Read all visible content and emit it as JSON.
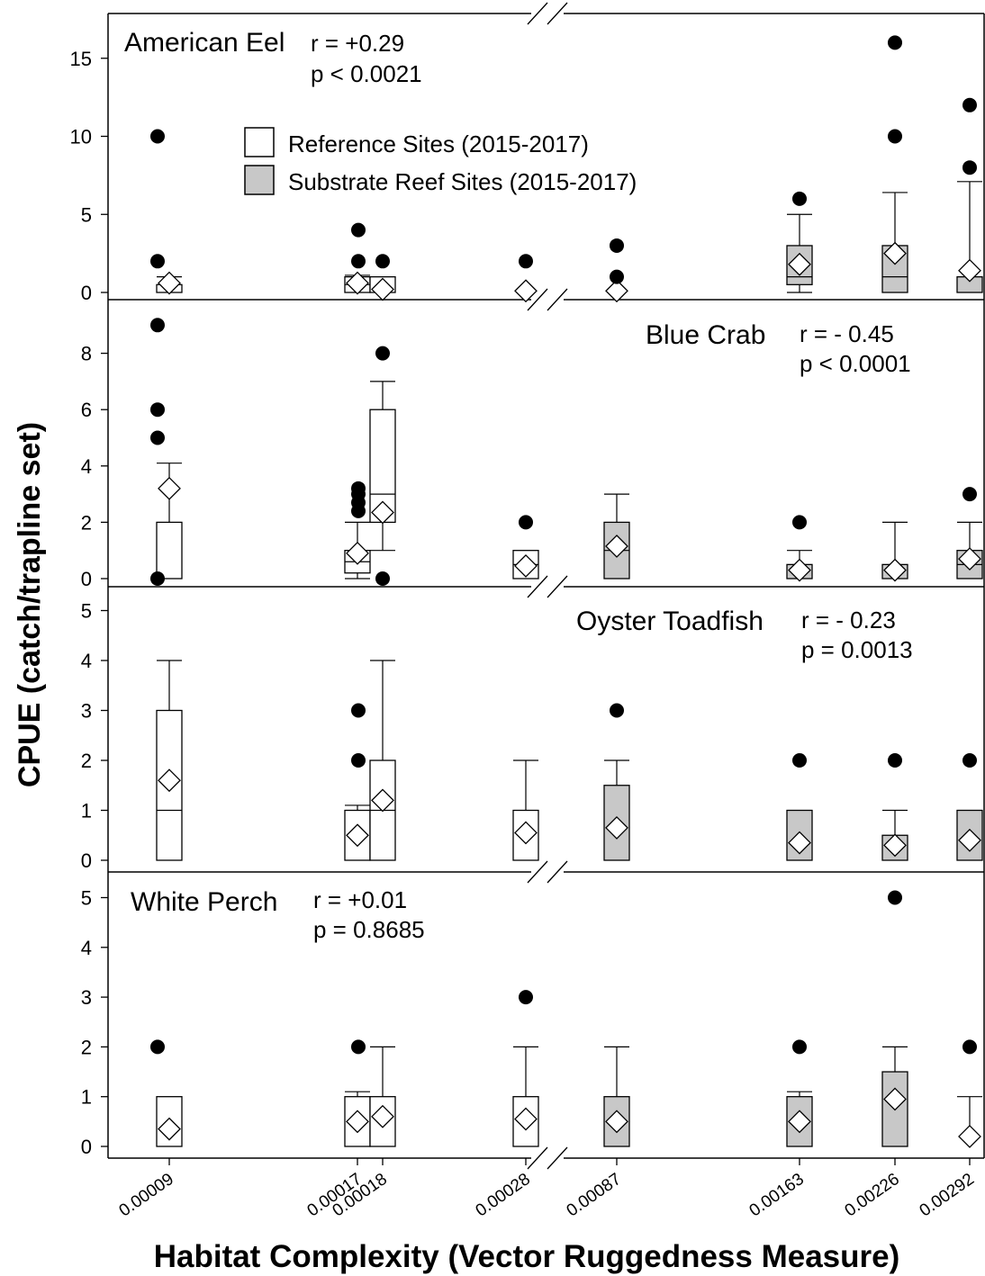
{
  "chart_data": {
    "type": "box",
    "ylabel": "CPUE (catch/trapline set)",
    "xlabel": "Habitat Complexity (Vector Ruggedness Measure)",
    "x_ticks": [
      "0.00009",
      "0.00017",
      "0.00018",
      "0.00028",
      "0.00087",
      "0.00163",
      "0.00226",
      "0.00292"
    ],
    "legend": [
      {
        "label": "Reference Sites (2015-2017)",
        "fill": "#ffffff"
      },
      {
        "label": "Substrate Reef Sites (2015-2017)",
        "fill": "#c8c8c8"
      }
    ],
    "panels": [
      {
        "species": "American Eel",
        "r": "r =  +0.29",
        "p": "p < 0.0021",
        "ylim": [
          0,
          18
        ],
        "yticks": [
          0,
          5,
          10,
          15
        ],
        "boxes": [
          {
            "x": "0.00009",
            "type": "reference",
            "q1": 0,
            "median": 0,
            "q3": 0.5,
            "whisker_low": 0,
            "whisker_high": 1,
            "mean": 0.6,
            "outliers": [
              2,
              10
            ]
          },
          {
            "x": "0.00017",
            "type": "reference",
            "q1": 0,
            "median": 0.5,
            "q3": 1,
            "whisker_low": 0,
            "whisker_high": 1.1,
            "mean": 0.6,
            "outliers": [
              2,
              4
            ]
          },
          {
            "x": "0.00018",
            "type": "reference",
            "q1": 0,
            "median": 0,
            "q3": 1,
            "whisker_low": 0,
            "whisker_high": 1,
            "mean": 0.2,
            "outliers": [
              2
            ]
          },
          {
            "x": "0.00028",
            "type": "reference",
            "q1": 0,
            "median": 0,
            "q3": 0,
            "whisker_low": 0,
            "whisker_high": 0,
            "mean": 0.1,
            "outliers": [
              2
            ]
          },
          {
            "x": "0.00087",
            "type": "reef",
            "q1": 0,
            "median": 0,
            "q3": 0,
            "whisker_low": 0,
            "whisker_high": 0,
            "mean": 0.1,
            "outliers": [
              1,
              3
            ]
          },
          {
            "x": "0.00163",
            "type": "reef",
            "q1": 0.5,
            "median": 1,
            "q3": 3,
            "whisker_low": 0,
            "whisker_high": 5,
            "mean": 1.8,
            "outliers": [
              6
            ]
          },
          {
            "x": "0.00226",
            "type": "reef",
            "q1": 0,
            "median": 1,
            "q3": 3,
            "whisker_low": 0,
            "whisker_high": 6.4,
            "mean": 2.5,
            "outliers": [
              10,
              16
            ]
          },
          {
            "x": "0.00292",
            "type": "reef",
            "q1": 0,
            "median": 0,
            "q3": 1,
            "whisker_low": 0,
            "whisker_high": 7.1,
            "mean": 1.4,
            "outliers": [
              8,
              12
            ]
          }
        ]
      },
      {
        "species": "Blue Crab",
        "r": "r =  - 0.45",
        "p": "p < 0.0001",
        "ylim": [
          -0.3,
          10
        ],
        "yticks": [
          0,
          2,
          4,
          6,
          8
        ],
        "boxes": [
          {
            "x": "0.00009",
            "type": "reference",
            "q1": 0,
            "median": 0,
            "q3": 2,
            "whisker_low": 0,
            "whisker_high": 4.1,
            "mean": 3.2,
            "outliers": [
              0,
              5,
              6,
              9
            ]
          },
          {
            "x": "0.00017",
            "type": "reference",
            "q1": 0.2,
            "median": 0.6,
            "q3": 1,
            "whisker_low": 0,
            "whisker_high": 2,
            "mean": 0.9,
            "outliers": [
              2.4,
              2.7,
              3,
              3.2
            ]
          },
          {
            "x": "0.00018",
            "type": "reference",
            "q1": 2,
            "median": 3,
            "q3": 6,
            "whisker_low": 1,
            "whisker_high": 7,
            "mean": 2.35,
            "outliers": [
              0,
              8
            ]
          },
          {
            "x": "0.00028",
            "type": "reference",
            "q1": 0,
            "median": 0.5,
            "q3": 1,
            "whisker_low": 0,
            "whisker_high": 1,
            "mean": 0.45,
            "outliers": [
              2
            ]
          },
          {
            "x": "0.00087",
            "type": "reef",
            "q1": 0,
            "median": 1,
            "q3": 2,
            "whisker_low": 0,
            "whisker_high": 3,
            "mean": 1.15,
            "outliers": []
          },
          {
            "x": "0.00163",
            "type": "reef",
            "q1": 0,
            "median": 0,
            "q3": 0.5,
            "whisker_low": 0,
            "whisker_high": 1,
            "mean": 0.3,
            "outliers": [
              2
            ]
          },
          {
            "x": "0.00226",
            "type": "reef",
            "q1": 0,
            "median": 0,
            "q3": 0.5,
            "whisker_low": 0,
            "whisker_high": 2,
            "mean": 0.3,
            "outliers": []
          },
          {
            "x": "0.00292",
            "type": "reef",
            "q1": 0,
            "median": 0.5,
            "q3": 1,
            "whisker_low": 0,
            "whisker_high": 2,
            "mean": 0.7,
            "outliers": [
              3
            ]
          }
        ]
      },
      {
        "species": "Oyster Toadfish",
        "r": "r =  - 0.23",
        "p": "p = 0.0013",
        "ylim": [
          0,
          5.5
        ],
        "yticks": [
          0,
          1,
          2,
          3,
          4,
          5
        ],
        "boxes": [
          {
            "x": "0.00009",
            "type": "reference",
            "q1": 0,
            "median": 1,
            "q3": 3,
            "whisker_low": 0,
            "whisker_high": 4,
            "mean": 1.6,
            "outliers": []
          },
          {
            "x": "0.00017",
            "type": "reference",
            "q1": 0,
            "median": 0,
            "q3": 1,
            "whisker_low": 0,
            "whisker_high": 1.1,
            "mean": 0.5,
            "outliers": [
              2,
              3
            ]
          },
          {
            "x": "0.00018",
            "type": "reference",
            "q1": 0,
            "median": 1,
            "q3": 2,
            "whisker_low": 0,
            "whisker_high": 4,
            "mean": 1.2,
            "outliers": []
          },
          {
            "x": "0.00028",
            "type": "reference",
            "q1": 0,
            "median": 0,
            "q3": 1,
            "whisker_low": 0,
            "whisker_high": 2,
            "mean": 0.55,
            "outliers": []
          },
          {
            "x": "0.00087",
            "type": "reef",
            "q1": 0,
            "median": 0,
            "q3": 1.5,
            "whisker_low": 0,
            "whisker_high": 2,
            "mean": 0.65,
            "outliers": [
              3
            ]
          },
          {
            "x": "0.00163",
            "type": "reef",
            "q1": 0,
            "median": 0,
            "q3": 1,
            "whisker_low": 0,
            "whisker_high": 1,
            "mean": 0.35,
            "outliers": [
              2
            ]
          },
          {
            "x": "0.00226",
            "type": "reef",
            "q1": 0,
            "median": 0,
            "q3": 0.5,
            "whisker_low": 0,
            "whisker_high": 1,
            "mean": 0.3,
            "outliers": [
              2
            ]
          },
          {
            "x": "0.00292",
            "type": "reef",
            "q1": 0,
            "median": 0,
            "q3": 1,
            "whisker_low": 0,
            "whisker_high": 1,
            "mean": 0.4,
            "outliers": [
              2
            ]
          }
        ]
      },
      {
        "species": "White Perch",
        "r": "r =  +0.01",
        "p": "p = 0.8685",
        "ylim": [
          -0.3,
          5.3
        ],
        "yticks": [
          0,
          1,
          2,
          3,
          4,
          5
        ],
        "boxes": [
          {
            "x": "0.00009",
            "type": "reference",
            "q1": 0,
            "median": 0,
            "q3": 1,
            "whisker_low": 0,
            "whisker_high": 1,
            "mean": 0.35,
            "outliers": [
              2
            ]
          },
          {
            "x": "0.00017",
            "type": "reference",
            "q1": 0,
            "median": 0,
            "q3": 1,
            "whisker_low": 0,
            "whisker_high": 1.1,
            "mean": 0.5,
            "outliers": [
              2
            ]
          },
          {
            "x": "0.00018",
            "type": "reference",
            "q1": 0,
            "median": 0,
            "q3": 1,
            "whisker_low": 0,
            "whisker_high": 2,
            "mean": 0.6,
            "outliers": []
          },
          {
            "x": "0.00028",
            "type": "reference",
            "q1": 0,
            "median": 0,
            "q3": 1,
            "whisker_low": 0,
            "whisker_high": 2,
            "mean": 0.55,
            "outliers": [
              3
            ]
          },
          {
            "x": "0.00087",
            "type": "reef",
            "q1": 0,
            "median": 0,
            "q3": 1,
            "whisker_low": 0,
            "whisker_high": 2,
            "mean": 0.5,
            "outliers": []
          },
          {
            "x": "0.00163",
            "type": "reef",
            "q1": 0,
            "median": 0,
            "q3": 1,
            "whisker_low": 0,
            "whisker_high": 1.1,
            "mean": 0.5,
            "outliers": [
              2
            ]
          },
          {
            "x": "0.00226",
            "type": "reef",
            "q1": 0,
            "median": 0,
            "q3": 1.5,
            "whisker_low": 0,
            "whisker_high": 2,
            "mean": 0.95,
            "outliers": [
              5
            ]
          },
          {
            "x": "0.00292",
            "type": "reef",
            "q1": 0,
            "median": 0,
            "q3": 0,
            "whisker_low": 0,
            "whisker_high": 1,
            "mean": 0.2,
            "outliers": [
              2
            ]
          }
        ]
      }
    ]
  }
}
